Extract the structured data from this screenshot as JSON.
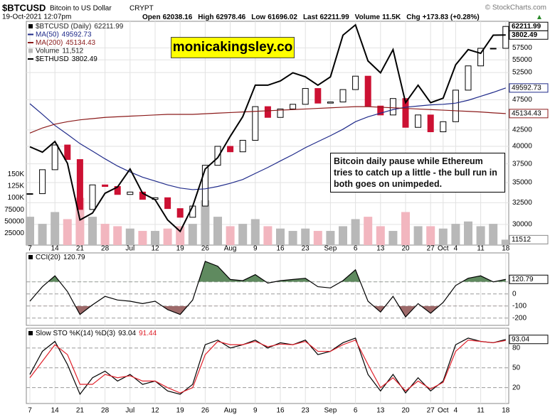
{
  "header": {
    "datetime": "19-Oct-2021 12:07pm",
    "copyright": "© StockCharts.com",
    "quote": [
      {
        "label": "Open",
        "value": 62038.16
      },
      {
        "label": "High",
        "value": 62978.46
      },
      {
        "label": "Low",
        "value": 61696.02
      },
      {
        "label": "Last",
        "value": 62211.99
      },
      {
        "label": "Volume",
        "value": "11.5K"
      },
      {
        "label": "Chg",
        "value": "+173.83 (+0.28%)"
      }
    ]
  },
  "chart_data": [
    {
      "type": "candlestick",
      "title": "$BTCUSD",
      "subtitle": "Bitcoin to US Dollar",
      "exchange": "CRYPT",
      "annotations": [
        "monicakingsley.co",
        "Bitcoin daily pause while Ethereum tries to catch up a little - the bull run in both goes on unimpeded."
      ],
      "categories": [
        "7",
        null,
        "14",
        null,
        "21",
        null,
        "28",
        null,
        "Jul",
        null,
        "12",
        null,
        "19",
        null,
        "26",
        null,
        "Aug",
        null,
        "9",
        null,
        "16",
        null,
        "23",
        null,
        "Sep",
        null,
        "6",
        null,
        "13",
        null,
        "20",
        null,
        "27",
        "Oct",
        "4",
        null,
        "11",
        null,
        "18"
      ],
      "ylim": [
        27800,
        63400
      ],
      "yscale": "log",
      "yticks": [
        30000,
        32500,
        35000,
        37500,
        40000,
        42500,
        47500,
        52500,
        55000,
        57500
      ],
      "y2lim": [
        1729,
        4003
      ],
      "y2scale": "log",
      "grid": true,
      "axis_side": "right",
      "series": [
        {
          "name": "$BTCUSD (Daily)",
          "type": "candlestick",
          "color": "#000000",
          "up_color": "#000000",
          "down_color": "#cc1133",
          "values": [
            33600,
            36700,
            40200,
            38100,
            31700,
            34700,
            34500,
            33500,
            33800,
            32900,
            33100,
            31800,
            30800,
            32100,
            37300,
            40000,
            39200,
            40900,
            46300,
            44500,
            45900,
            46700,
            49500,
            46900,
            47100,
            49300,
            51800,
            46400,
            44900,
            47700,
            42900,
            44900,
            42200,
            43800,
            49200,
            53800,
            57400,
            57400,
            62211.99
          ]
        },
        {
          "name": "MA(50)",
          "type": "line",
          "color": "#1f2a8a",
          "values": [
            46800,
            45000,
            43200,
            41800,
            40400,
            39300,
            38200,
            37200,
            36400,
            35700,
            35200,
            34700,
            34300,
            34100,
            34200,
            34500,
            34900,
            35400,
            36200,
            37000,
            37900,
            38800,
            39800,
            40700,
            41600,
            42600,
            43800,
            44600,
            45200,
            45800,
            46200,
            46400,
            46600,
            46700,
            46900,
            47400,
            48100,
            48800,
            49592.73
          ]
        },
        {
          "name": "MA(200)",
          "type": "line",
          "color": "#8b1a1a",
          "values": [
            42000,
            42800,
            43400,
            43800,
            44100,
            44300,
            44500,
            44600,
            44700,
            44800,
            44900,
            45000,
            45000,
            45000,
            45100,
            45200,
            45300,
            45400,
            45500,
            45600,
            45700,
            45800,
            45900,
            46000,
            46100,
            46200,
            46300,
            46300,
            46200,
            46100,
            46000,
            45900,
            45800,
            45700,
            45600,
            45500,
            45400,
            45250,
            45134.43
          ]
        },
        {
          "name": "$ETHUSD",
          "type": "line",
          "axis": "y2",
          "color": "#000000",
          "values": [
            2500,
            2450,
            2550,
            2350,
            1900,
            1950,
            2100,
            2150,
            2300,
            2100,
            2050,
            1900,
            1820,
            2000,
            2300,
            2400,
            2600,
            2800,
            3150,
            3150,
            3200,
            3300,
            3250,
            3150,
            3250,
            3800,
            3950,
            3450,
            3300,
            3600,
            2950,
            3150,
            2950,
            3000,
            3400,
            3600,
            3550,
            3800,
            3802.49
          ]
        }
      ]
    },
    {
      "type": "bar",
      "ylim": [
        0,
        474000
      ],
      "yticks": [
        25000,
        50000,
        75000,
        {
          "value": 100000,
          "label": "100K"
        },
        {
          "value": 125000,
          "label": "125K"
        },
        {
          "value": 150000,
          "label": "150K"
        }
      ],
      "grid": false,
      "axis_side": "left",
      "series": [
        {
          "name": "Volume",
          "color": "#b8b8b8",
          "up_color": "#b8b8b8",
          "down_color": "#f2b6bf",
          "values": [
            60000,
            45000,
            70000,
            55000,
            100000,
            60000,
            45000,
            40000,
            35000,
            30000,
            30000,
            35000,
            40000,
            45000,
            95000,
            60000,
            40000,
            45000,
            55000,
            40000,
            35000,
            30000,
            35000,
            30000,
            30000,
            40000,
            55000,
            60000,
            40000,
            30000,
            70000,
            40000,
            40000,
            35000,
            45000,
            50000,
            40000,
            45000,
            11512
          ],
          "value_labels": [
            null,
            null,
            null,
            null,
            null,
            null,
            null,
            null,
            null,
            null,
            null,
            null,
            null,
            null,
            null,
            null,
            null,
            null,
            null,
            null,
            null,
            null,
            null,
            null,
            null,
            null,
            null,
            null,
            null,
            null,
            null,
            null,
            null,
            null,
            null,
            null,
            null,
            null,
            "11,512"
          ]
        }
      ]
    },
    {
      "type": "line",
      "title": "CCI(20)",
      "ylim": [
        -260,
        340
      ],
      "yticks": [
        -200,
        -100,
        0,
        100
      ],
      "grid": true,
      "grid_style": "dashed",
      "axis_side": "right",
      "fill_above": {
        "level": 100,
        "color": "#5f8a5f"
      },
      "fill_below": {
        "level": -100,
        "color": "#9e6a6a"
      },
      "series": [
        {
          "color": "#000000",
          "values": [
            -60,
            60,
            150,
            20,
            -170,
            -90,
            -20,
            -50,
            -60,
            -80,
            -60,
            -130,
            -170,
            -50,
            270,
            230,
            120,
            110,
            160,
            90,
            110,
            120,
            130,
            60,
            50,
            110,
            200,
            -60,
            -150,
            -20,
            -190,
            -80,
            -160,
            -70,
            70,
            130,
            150,
            100,
            120.79
          ]
        }
      ]
    },
    {
      "type": "line",
      "title": "Slow STO %K(14) %D(3)",
      "ylim": [
        -4,
        110
      ],
      "yticks": [
        20,
        50,
        80
      ],
      "grid": true,
      "grid_style": "dashed",
      "axis_side": "right",
      "series": [
        {
          "color": "#000000",
          "values": [
            40,
            75,
            90,
            55,
            10,
            35,
            45,
            30,
            40,
            25,
            30,
            15,
            10,
            25,
            85,
            92,
            80,
            85,
            92,
            80,
            88,
            85,
            92,
            70,
            75,
            88,
            95,
            40,
            15,
            40,
            12,
            35,
            15,
            30,
            85,
            95,
            90,
            88,
            93.04
          ]
        },
        {
          "color": "#e0202a",
          "values": [
            35,
            60,
            85,
            70,
            25,
            25,
            40,
            35,
            38,
            30,
            30,
            20,
            12,
            20,
            70,
            90,
            85,
            85,
            90,
            82,
            86,
            85,
            90,
            75,
            75,
            85,
            92,
            55,
            20,
            35,
            15,
            30,
            18,
            28,
            75,
            92,
            90,
            88,
            91.44
          ]
        }
      ]
    }
  ]
}
